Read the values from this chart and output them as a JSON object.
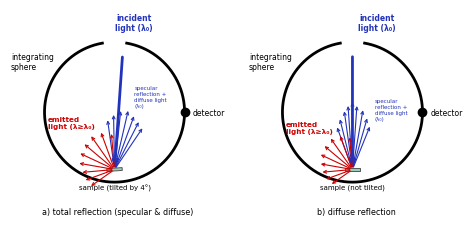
{
  "fig_width": 4.74,
  "fig_height": 2.28,
  "bg_color": "#ffffff",
  "blue": "#2233bb",
  "red": "#cc0000",
  "caption_left": "a) total reflection (specular & diffuse)",
  "caption_right": "b) diffuse reflection",
  "sample_tilted_label": "sample (tilted by 4°)",
  "sample_not_tilted_label": "sample (not tilted)",
  "integrating_sphere_label": "integrating\nsphere",
  "detector_label": "detector",
  "incident_label": "incident\nlight (λ₀)",
  "specular_label": "specular\nreflection +\ndiffuse light\n(λ₀)",
  "emitted_label_tilted": "emitted\nlight (λ≥λ₀)",
  "emitted_label_not_tilted": "emitted\nlight (λ≥λ₀)"
}
